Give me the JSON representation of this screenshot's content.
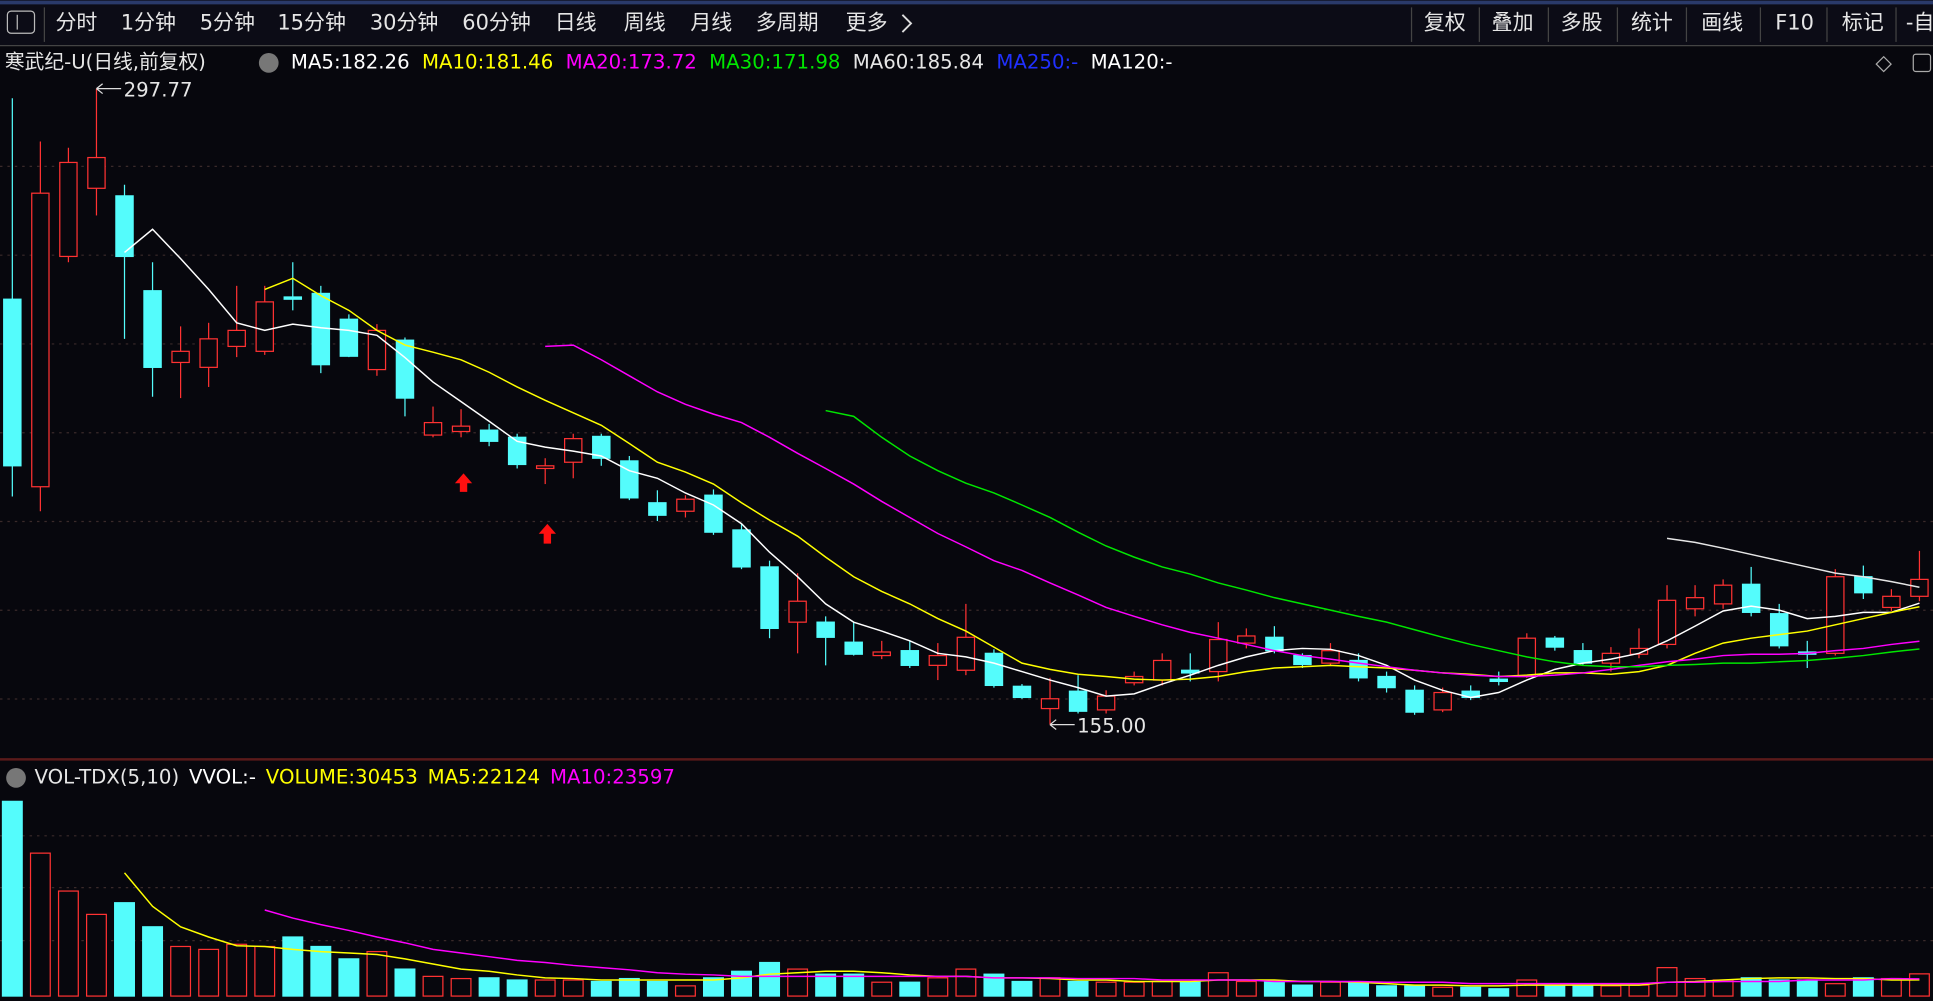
{
  "toolbar": {
    "periods": [
      {
        "label": "分时"
      },
      {
        "label": "1分钟"
      },
      {
        "label": "5分钟"
      },
      {
        "label": "15分钟"
      },
      {
        "label": "30分钟"
      },
      {
        "label": "60分钟"
      },
      {
        "label": "日线",
        "active": true
      },
      {
        "label": "周线"
      },
      {
        "label": "月线"
      },
      {
        "label": "多周期"
      },
      {
        "label": "更多"
      }
    ],
    "tools": [
      "复权",
      "叠加",
      "多股",
      "统计",
      "画线",
      "F10",
      "标记",
      "-自"
    ]
  },
  "chart_data": [
    {
      "type": "candlestick",
      "title": "寒武纪-U(日线,前复权)",
      "legend_separator": ": ",
      "ylim": [
        148.3,
        306.6
      ],
      "high_label": "297.77",
      "low_label": "155.00",
      "up_color": "#ff3232",
      "down_color": "#54fcfc",
      "open": [
        250.5,
        208.4,
        260.1,
        275.4,
        273.7,
        252.4,
        236.3,
        235.2,
        239.9,
        238.8,
        251.0,
        251.8,
        246.0,
        234.7,
        241.3,
        220.0,
        220.8,
        221.1,
        219.5,
        212.5,
        213.9,
        219.7,
        214.2,
        204.8,
        202.9,
        206.5,
        198.7,
        190.4,
        178.0,
        178.0,
        173.5,
        170.5,
        171.6,
        168.3,
        167.2,
        171.0,
        163.6,
        158.6,
        162.5,
        158.3,
        164.4,
        165.0,
        167.2,
        166.9,
        173.3,
        174.6,
        170.5,
        168.8,
        169.4,
        165.8,
        162.7,
        158.3,
        162.5,
        165.2,
        165.8,
        174.4,
        171.6,
        168.8,
        170.8,
        173.0,
        181.0,
        182.1,
        186.5,
        179.9,
        171.3,
        171.0,
        188.2,
        181.3,
        183.8
      ],
      "high": [
        295.6,
        285.9,
        284.5,
        297.77,
        276.2,
        258.8,
        244.4,
        245.2,
        253.5,
        253.5,
        258.8,
        253.5,
        247.1,
        244.9,
        241.9,
        226.4,
        225.8,
        222.5,
        220.3,
        214.8,
        220.3,
        220.3,
        215.3,
        207.6,
        206.5,
        207.8,
        200.1,
        191.8,
        189.0,
        179.3,
        178.0,
        173.8,
        173.8,
        173.3,
        182.1,
        171.9,
        164.1,
        165.5,
        166.1,
        162.7,
        166.9,
        171.0,
        171.0,
        178.0,
        176.6,
        177.1,
        171.0,
        173.3,
        171.0,
        166.9,
        163.8,
        163.3,
        163.8,
        166.9,
        175.5,
        174.9,
        173.3,
        172.4,
        176.6,
        186.3,
        186.3,
        187.6,
        190.4,
        182.1,
        173.8,
        189.9,
        190.7,
        185.4,
        194.0
      ],
      "low": [
        206.2,
        202.9,
        258.8,
        269.3,
        241.6,
        228.6,
        228.3,
        230.8,
        237.5,
        238.0,
        248.0,
        233.9,
        237.5,
        233.3,
        224.2,
        219.5,
        219.5,
        217.5,
        212.5,
        209.0,
        210.3,
        213.1,
        205.4,
        200.7,
        201.5,
        197.6,
        189.9,
        174.4,
        171.0,
        168.3,
        170.5,
        169.7,
        167.7,
        165.0,
        166.1,
        163.3,
        160.8,
        155.0,
        157.5,
        157.5,
        163.8,
        163.8,
        164.7,
        164.7,
        172.1,
        171.0,
        167.7,
        168.3,
        164.7,
        162.2,
        157.2,
        157.8,
        160.5,
        163.8,
        165.5,
        171.6,
        168.3,
        166.9,
        169.9,
        172.1,
        179.3,
        181.0,
        179.3,
        172.1,
        167.7,
        170.5,
        183.2,
        180.5,
        182.7
      ],
      "close": [
        213.1,
        274.3,
        281.2,
        282.3,
        260.1,
        235.2,
        238.8,
        241.6,
        243.5,
        249.9,
        250.5,
        235.8,
        237.7,
        243.5,
        228.3,
        222.8,
        222.0,
        218.6,
        213.4,
        213.1,
        219.2,
        214.8,
        205.9,
        202.0,
        205.6,
        198.2,
        190.4,
        176.6,
        182.7,
        174.6,
        170.8,
        171.3,
        168.3,
        170.5,
        174.6,
        163.8,
        161.1,
        160.8,
        158.0,
        161.4,
        165.8,
        169.4,
        166.6,
        174.1,
        174.9,
        171.6,
        168.5,
        171.6,
        165.5,
        163.3,
        157.8,
        162.2,
        161.1,
        164.7,
        174.4,
        172.4,
        168.8,
        171.0,
        172.1,
        182.9,
        183.5,
        186.3,
        180.2,
        172.7,
        170.8,
        188.2,
        184.6,
        183.8,
        187.6
      ],
      "series": [
        {
          "name": "MA5",
          "color": "#ffffff",
          "values": [
            null,
            null,
            null,
            null,
            261.0,
            266.2,
            259.6,
            252.7,
            245.2,
            243.5,
            244.9,
            244.1,
            243.5,
            242.4,
            237.4,
            231.9,
            227.5,
            223.1,
            218.6,
            217.3,
            216.4,
            215.3,
            212.0,
            210.3,
            207.0,
            204.3,
            200.1,
            193.7,
            188.2,
            182.1,
            178.0,
            176.0,
            173.8,
            171.0,
            170.2,
            168.8,
            166.9,
            165.0,
            163.3,
            161.4,
            161.9,
            164.1,
            166.1,
            168.3,
            170.2,
            171.6,
            172.1,
            171.9,
            170.5,
            168.3,
            165.0,
            162.7,
            161.1,
            162.2,
            165.0,
            167.4,
            168.8,
            169.7,
            171.0,
            173.8,
            177.1,
            180.5,
            181.6,
            180.7,
            178.8,
            179.3,
            180.2,
            180.2,
            182.26
          ]
        },
        {
          "name": "MA10",
          "color": "#ffff00",
          "values": [
            null,
            null,
            null,
            null,
            null,
            null,
            null,
            null,
            null,
            252.7,
            255.2,
            251.3,
            248.0,
            243.5,
            240.2,
            238.6,
            236.9,
            234.1,
            230.8,
            227.8,
            225.0,
            222.2,
            218.1,
            213.9,
            211.7,
            209.0,
            204.8,
            200.9,
            197.3,
            192.6,
            188.2,
            184.9,
            182.1,
            178.8,
            176.0,
            172.4,
            168.8,
            167.4,
            166.3,
            165.8,
            165.2,
            165.0,
            165.2,
            165.8,
            166.9,
            167.7,
            168.0,
            168.3,
            168.0,
            167.7,
            167.2,
            166.6,
            166.3,
            165.8,
            166.1,
            166.6,
            166.6,
            166.3,
            166.9,
            168.3,
            171.0,
            173.3,
            174.4,
            175.2,
            176.0,
            177.4,
            178.8,
            180.2,
            181.46
          ]
        },
        {
          "name": "MA20",
          "color": "#ff00ff",
          "values": [
            null,
            null,
            null,
            null,
            null,
            null,
            null,
            null,
            null,
            null,
            null,
            null,
            null,
            null,
            null,
            null,
            null,
            null,
            null,
            239.9,
            240.2,
            236.9,
            233.3,
            229.7,
            226.9,
            224.7,
            222.8,
            219.5,
            215.9,
            212.5,
            209.0,
            205.1,
            201.5,
            197.9,
            194.9,
            191.8,
            189.6,
            186.8,
            184.1,
            181.3,
            179.3,
            177.4,
            175.7,
            174.4,
            173.0,
            171.6,
            170.5,
            169.7,
            168.8,
            168.0,
            167.2,
            166.6,
            166.1,
            165.8,
            165.8,
            166.1,
            166.6,
            167.4,
            168.3,
            169.1,
            169.7,
            170.5,
            170.8,
            170.8,
            171.0,
            171.6,
            172.1,
            173.0,
            173.72
          ]
        },
        {
          "name": "MA30",
          "color": "#00e600",
          "values": [
            null,
            null,
            null,
            null,
            null,
            null,
            null,
            null,
            null,
            null,
            null,
            null,
            null,
            null,
            null,
            null,
            null,
            null,
            null,
            null,
            null,
            null,
            null,
            null,
            null,
            null,
            null,
            null,
            null,
            225.5,
            224.2,
            219.5,
            215.3,
            212.0,
            209.2,
            207.0,
            204.3,
            201.5,
            198.2,
            195.1,
            192.6,
            190.4,
            188.8,
            186.8,
            185.2,
            183.5,
            182.1,
            180.7,
            179.3,
            178.0,
            176.3,
            174.6,
            173.0,
            171.6,
            170.2,
            169.1,
            168.3,
            168.0,
            168.0,
            168.3,
            168.5,
            168.8,
            168.8,
            169.1,
            169.4,
            169.9,
            170.5,
            171.3,
            171.98
          ]
        },
        {
          "name": "MA60",
          "color": "#e6e6e6",
          "values": [
            null,
            null,
            null,
            null,
            null,
            null,
            null,
            null,
            null,
            null,
            null,
            null,
            null,
            null,
            null,
            null,
            null,
            null,
            null,
            null,
            null,
            null,
            null,
            null,
            null,
            null,
            null,
            null,
            null,
            null,
            null,
            null,
            null,
            null,
            null,
            null,
            null,
            null,
            null,
            null,
            null,
            null,
            null,
            null,
            null,
            null,
            null,
            null,
            null,
            null,
            null,
            null,
            null,
            null,
            null,
            null,
            null,
            null,
            null,
            196.8,
            195.9,
            194.6,
            193.2,
            191.8,
            190.4,
            189.0,
            188.2,
            187.1,
            185.84
          ]
        }
      ],
      "extra_legend": [
        {
          "name": "MA250",
          "color": "#2030ff",
          "label": "-"
        },
        {
          "name": "MA120",
          "color": "#ffffff",
          "label": "-"
        }
      ]
    },
    {
      "type": "bar",
      "title": "VOL-TDX(5,10)",
      "name": "VOLUME",
      "color": "#ffff00",
      "ylim": [
        0,
        284000
      ],
      "extra_legend": [
        {
          "name": "VVOL",
          "color": "#ffffff",
          "label": "-"
        }
      ],
      "values": [
        267000,
        196000,
        144000,
        112000,
        128000,
        95000,
        68000,
        64000,
        71000,
        68000,
        81000,
        68000,
        51000,
        61000,
        37000,
        27000,
        24000,
        25000,
        22000,
        22000,
        22000,
        20000,
        24000,
        20000,
        14000,
        25000,
        34000,
        46000,
        37000,
        30000,
        30000,
        19000,
        19000,
        25000,
        37000,
        30000,
        20000,
        25000,
        20000,
        19000,
        19000,
        20000,
        19000,
        32000,
        20000,
        20000,
        15000,
        19000,
        19000,
        14000,
        14000,
        12000,
        12000,
        10000,
        22000,
        15000,
        14000,
        14000,
        15000,
        39000,
        24000,
        22000,
        25000,
        22000,
        22000,
        17000,
        25000,
        24000,
        30453
      ],
      "series": [
        {
          "name": "MA5",
          "color": "#ffff00",
          "values": [
            null,
            null,
            null,
            null,
            169000,
            123000,
            95000,
            81000,
            69000,
            68000,
            64000,
            61000,
            59000,
            57000,
            51000,
            44000,
            37000,
            34000,
            29000,
            25000,
            24000,
            22000,
            22000,
            22000,
            22000,
            22000,
            25000,
            30000,
            32000,
            34000,
            34000,
            32000,
            29000,
            27000,
            27000,
            25000,
            25000,
            24000,
            22000,
            22000,
            20000,
            20000,
            20000,
            22000,
            22000,
            22000,
            20000,
            20000,
            19000,
            17000,
            15000,
            15000,
            14000,
            14000,
            15000,
            15000,
            15000,
            15000,
            15000,
            19000,
            20000,
            22000,
            24000,
            25000,
            25000,
            24000,
            24000,
            22000,
            22124
          ]
        },
        {
          "name": "MA10",
          "color": "#ff00ff",
          "values": [
            null,
            null,
            null,
            null,
            null,
            null,
            null,
            null,
            null,
            118000,
            107000,
            98000,
            90000,
            81000,
            73000,
            64000,
            59000,
            54000,
            49000,
            46000,
            42000,
            39000,
            36000,
            32000,
            30000,
            29000,
            27000,
            27000,
            27000,
            27000,
            27000,
            27000,
            27000,
            27000,
            27000,
            25000,
            25000,
            25000,
            24000,
            24000,
            24000,
            22000,
            22000,
            22000,
            22000,
            20000,
            20000,
            20000,
            20000,
            19000,
            19000,
            19000,
            17000,
            17000,
            17000,
            17000,
            17000,
            17000,
            17000,
            19000,
            19000,
            20000,
            20000,
            20000,
            22000,
            22000,
            22000,
            24000,
            23597
          ]
        }
      ]
    }
  ]
}
